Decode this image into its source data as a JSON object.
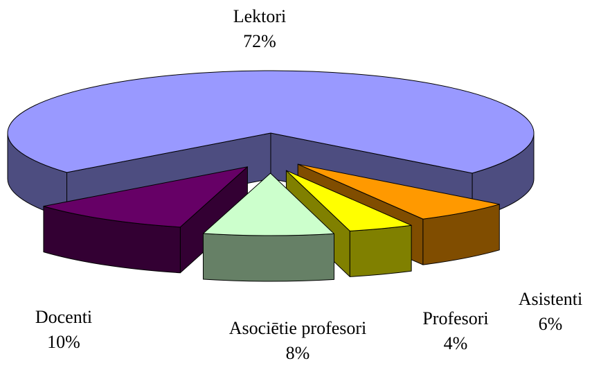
{
  "chart_data": {
    "type": "pie",
    "categories": [
      "Lektori",
      "Asistenti",
      "Profesori",
      "Asociētie profesori",
      "Docenti"
    ],
    "values": [
      72,
      6,
      4,
      8,
      10
    ],
    "value_labels": [
      "72%",
      "6%",
      "4%",
      "8%",
      "10%"
    ],
    "colors": [
      "#9999ff",
      "#ff9900",
      "#ffff00",
      "#ccffcc",
      "#660066"
    ]
  }
}
